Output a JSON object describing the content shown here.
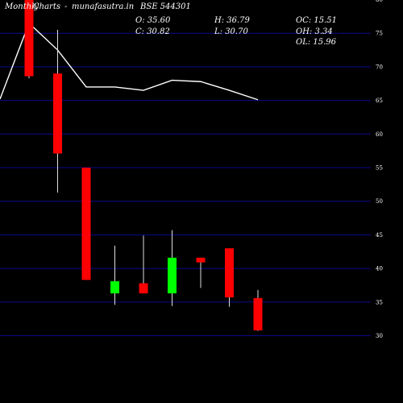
{
  "header": {
    "monthly": "Monthly",
    "charts": "Charts",
    "dash": "-",
    "site": "munafasutra.in",
    "symbol": "BSE 544301",
    "open": "O: 35.60",
    "close": "C: 30.82",
    "high": "H: 36.79",
    "low": "L: 30.70",
    "oc": "OC: 15.51",
    "oh": "OH: 3.34",
    "ol": "OL: 15.96"
  },
  "colors": {
    "background": "#000000",
    "grid": "#0a0a8c",
    "up": "#00ff00",
    "down": "#ff0000",
    "wick": "#dddddd",
    "line": "#ffffff",
    "text": "#ffffff"
  },
  "chart_data": {
    "type": "candlestick",
    "ylim": [
      27,
      80
    ],
    "yticks": [
      30,
      35,
      40,
      45,
      50,
      55,
      60,
      65,
      70,
      75,
      80
    ],
    "grid": true,
    "candles": [
      {
        "o": 80.5,
        "h": 80.5,
        "l": 68.3,
        "c": 68.6
      },
      {
        "o": 69.0,
        "h": 75.5,
        "l": 51.3,
        "c": 57.1
      },
      {
        "o": 55.0,
        "h": 55.0,
        "l": 38.3,
        "c": 38.3
      },
      {
        "o": 36.3,
        "h": 43.4,
        "l": 34.6,
        "c": 38.1
      },
      {
        "o": 37.8,
        "h": 44.9,
        "l": 36.3,
        "c": 36.3
      },
      {
        "o": 36.3,
        "h": 45.7,
        "l": 34.4,
        "c": 41.6
      },
      {
        "o": 41.6,
        "h": 41.6,
        "l": 37.1,
        "c": 40.9
      },
      {
        "o": 43.0,
        "h": 43.0,
        "l": 34.3,
        "c": 35.7
      },
      {
        "o": 35.6,
        "h": 36.8,
        "l": 30.7,
        "c": 30.8
      }
    ],
    "line": [
      {
        "i": -1,
        "v": 65.2
      },
      {
        "i": 0,
        "v": 76.5
      },
      {
        "i": 1,
        "v": 72.5
      },
      {
        "i": 2,
        "v": 67.0
      },
      {
        "i": 3,
        "v": 67.0
      },
      {
        "i": 4,
        "v": 66.5
      },
      {
        "i": 5,
        "v": 68.0
      },
      {
        "i": 6,
        "v": 67.8
      },
      {
        "i": 7,
        "v": 66.5
      },
      {
        "i": 8,
        "v": 65.1
      }
    ]
  }
}
